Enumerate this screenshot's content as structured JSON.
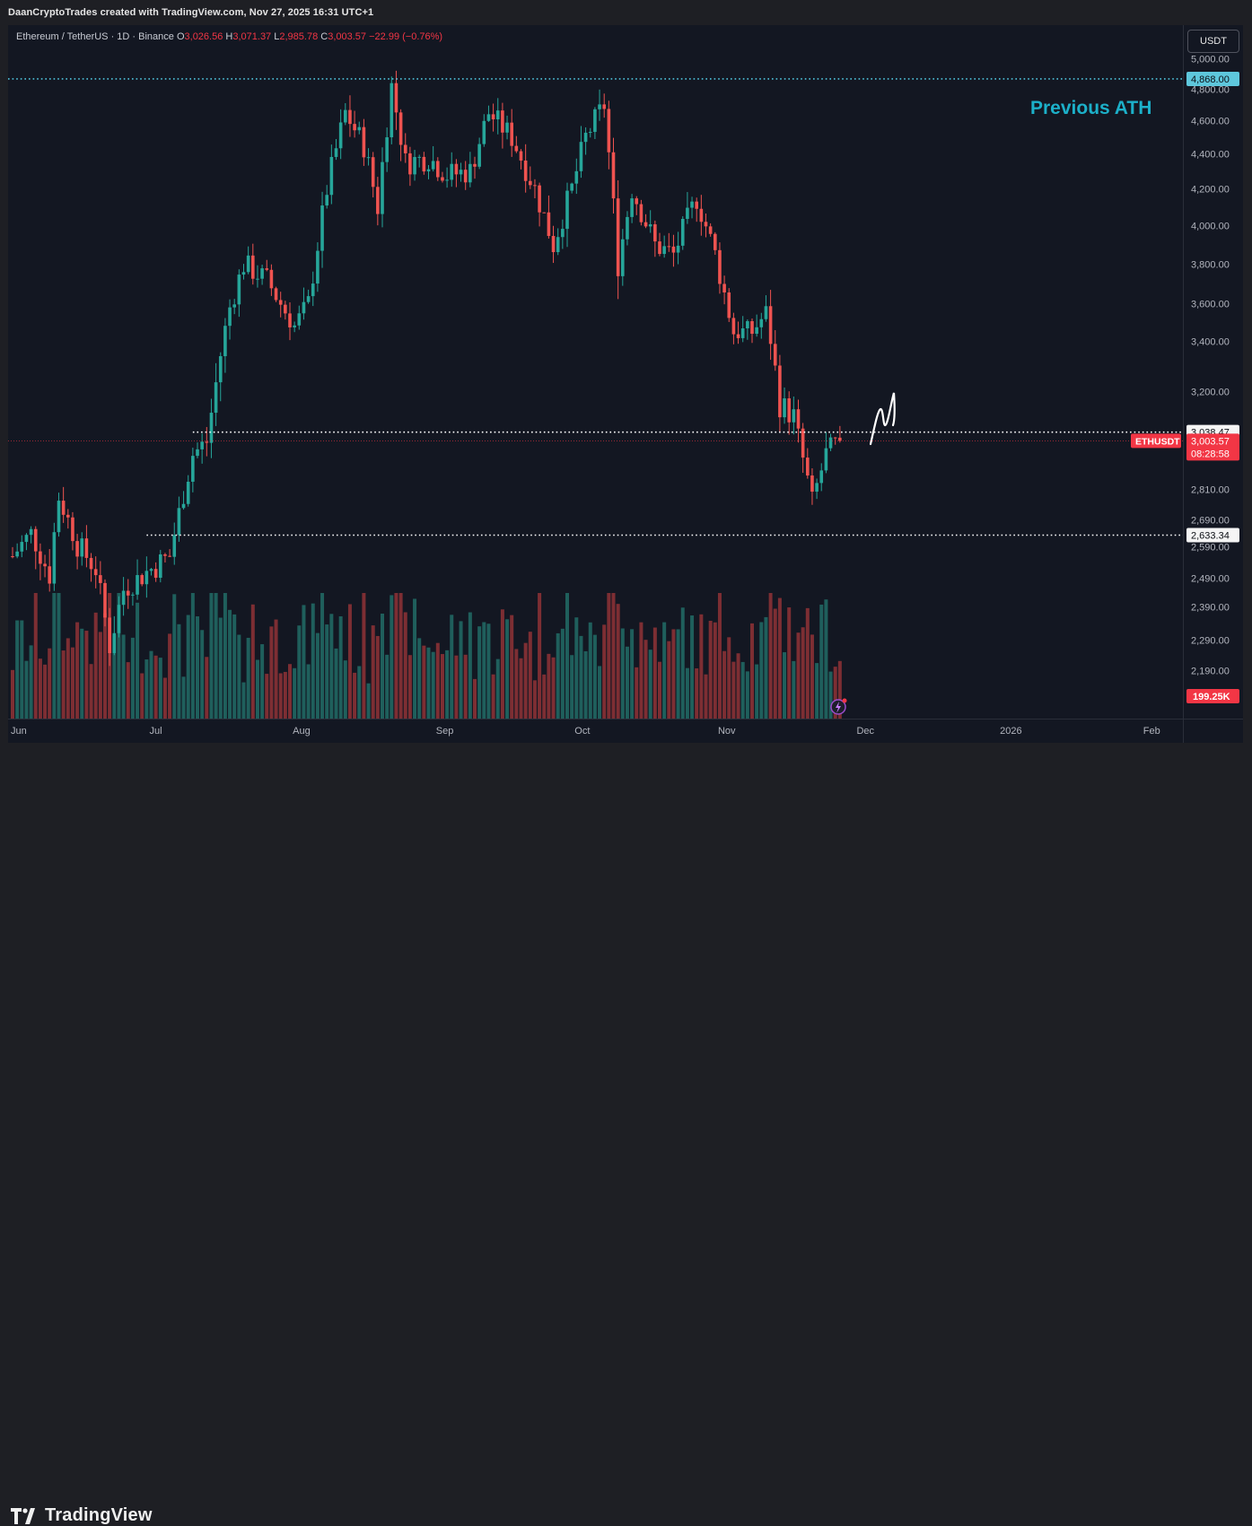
{
  "header": {
    "credit": "DaanCryptoTrades created with TradingView.com, Nov 27, 2025 16:31 UTC+1"
  },
  "legend": {
    "symbol": "Ethereum / TetherUS · 1D · Binance",
    "open_key": "O",
    "open": "3,026.56",
    "high_key": "H",
    "high": "3,071.37",
    "low_key": "L",
    "low": "2,985.78",
    "close_key": "C",
    "close": "3,003.57",
    "change": "−22.99 (−0.76%)"
  },
  "toolbar": {
    "currency": "USDT"
  },
  "footer": {
    "brand": "TradingView"
  },
  "annotation": {
    "ath_text": "Previous ATH"
  },
  "colors": {
    "up": "#26a69a",
    "down": "#ef5350",
    "vol_up": "#1f5f5c",
    "vol_down": "#7d2e33",
    "ath_line": "#4fc3dc",
    "level_line": "#ffffff",
    "price_tag": "#f23645",
    "background": "#131722"
  },
  "chart_data": {
    "type": "candlestick",
    "symbol": "ETHUSDT",
    "interval": "1D",
    "y_axis_ticks": [
      2190,
      2290,
      2390,
      2490,
      2590,
      2690,
      2810,
      3200,
      3400,
      3600,
      3800,
      4000,
      4200,
      4400,
      4600,
      4800,
      5000
    ],
    "y_axis_tick_labels": [
      "2,190.00",
      "2,290.00",
      "2,390.00",
      "2,490.00",
      "2,590.00",
      "2,690.00",
      "2,810.00",
      "3,200.00",
      "3,400.00",
      "3,600.00",
      "3,800.00",
      "4,000.00",
      "4,200.00",
      "4,400.00",
      "4,600.00",
      "4,800.00",
      "5,000.00"
    ],
    "x_axis_labels": [
      {
        "label": "Jun",
        "date": "2025-06-01"
      },
      {
        "label": "Jul",
        "date": "2025-07-01"
      },
      {
        "label": "Aug",
        "date": "2025-08-01"
      },
      {
        "label": "Sep",
        "date": "2025-09-01"
      },
      {
        "label": "Oct",
        "date": "2025-10-01"
      },
      {
        "label": "Nov",
        "date": "2025-11-01"
      },
      {
        "label": "Dec",
        "date": "2025-12-01"
      },
      {
        "label": "2026",
        "date": "2026-01-01"
      },
      {
        "label": "Feb",
        "date": "2026-02-01"
      }
    ],
    "levels": [
      {
        "name": "previous-ath",
        "value": 4868.0,
        "label": "4,868.00",
        "style": "dotted"
      },
      {
        "name": "resistance",
        "value": 3038.47,
        "label": "3,038.47",
        "style": "dotted",
        "start_date": "2025-07-10"
      },
      {
        "name": "support",
        "value": 2633.34,
        "label": "2,633.34",
        "style": "dotted",
        "start_date": "2025-06-30"
      }
    ],
    "last_price": {
      "symbol_tag": "ETHUSDT",
      "value": 3003.57,
      "label": "3,003.57",
      "countdown": "08:28:58"
    },
    "volume_last": "199.25K",
    "anchors": [
      {
        "date": "2025-06-01",
        "close": 2560
      },
      {
        "date": "2025-06-05",
        "close": 2640
      },
      {
        "date": "2025-06-09",
        "close": 2500
      },
      {
        "date": "2025-06-11",
        "close": 2780
      },
      {
        "date": "2025-06-15",
        "close": 2600
      },
      {
        "date": "2025-06-19",
        "close": 2520
      },
      {
        "date": "2025-06-22",
        "close": 2270
      },
      {
        "date": "2025-06-25",
        "close": 2450
      },
      {
        "date": "2025-06-30",
        "close": 2510
      },
      {
        "date": "2025-07-05",
        "close": 2560
      },
      {
        "date": "2025-07-10",
        "close": 2950
      },
      {
        "date": "2025-07-13",
        "close": 3000
      },
      {
        "date": "2025-07-18",
        "close": 3580
      },
      {
        "date": "2025-07-21",
        "close": 3800
      },
      {
        "date": "2025-07-26",
        "close": 3720
      },
      {
        "date": "2025-08-01",
        "close": 3480
      },
      {
        "date": "2025-08-04",
        "close": 3600
      },
      {
        "date": "2025-08-08",
        "close": 4200
      },
      {
        "date": "2025-08-12",
        "close": 4650
      },
      {
        "date": "2025-08-16",
        "close": 4450
      },
      {
        "date": "2025-08-19",
        "close": 4100
      },
      {
        "date": "2025-08-22",
        "close": 4820
      },
      {
        "date": "2025-08-25",
        "close": 4350
      },
      {
        "date": "2025-08-30",
        "close": 4380
      },
      {
        "date": "2025-09-03",
        "close": 4280
      },
      {
        "date": "2025-09-08",
        "close": 4300
      },
      {
        "date": "2025-09-12",
        "close": 4650
      },
      {
        "date": "2025-09-17",
        "close": 4500
      },
      {
        "date": "2025-09-22",
        "close": 4200
      },
      {
        "date": "2025-09-26",
        "close": 3900
      },
      {
        "date": "2025-09-30",
        "close": 4200
      },
      {
        "date": "2025-10-03",
        "close": 4500
      },
      {
        "date": "2025-10-07",
        "close": 4700
      },
      {
        "date": "2025-10-10",
        "close": 3800
      },
      {
        "date": "2025-10-13",
        "close": 4200
      },
      {
        "date": "2025-10-18",
        "close": 3900
      },
      {
        "date": "2025-10-22",
        "close": 3850
      },
      {
        "date": "2025-10-27",
        "close": 4150
      },
      {
        "date": "2025-10-31",
        "close": 3850
      },
      {
        "date": "2025-11-04",
        "close": 3450
      },
      {
        "date": "2025-11-08",
        "close": 3450
      },
      {
        "date": "2025-11-11",
        "close": 3550
      },
      {
        "date": "2025-11-14",
        "close": 3150
      },
      {
        "date": "2025-11-17",
        "close": 3100
      },
      {
        "date": "2025-11-21",
        "close": 2760
      },
      {
        "date": "2025-11-24",
        "close": 2950
      },
      {
        "date": "2025-11-27",
        "close": 3003.57
      }
    ]
  }
}
